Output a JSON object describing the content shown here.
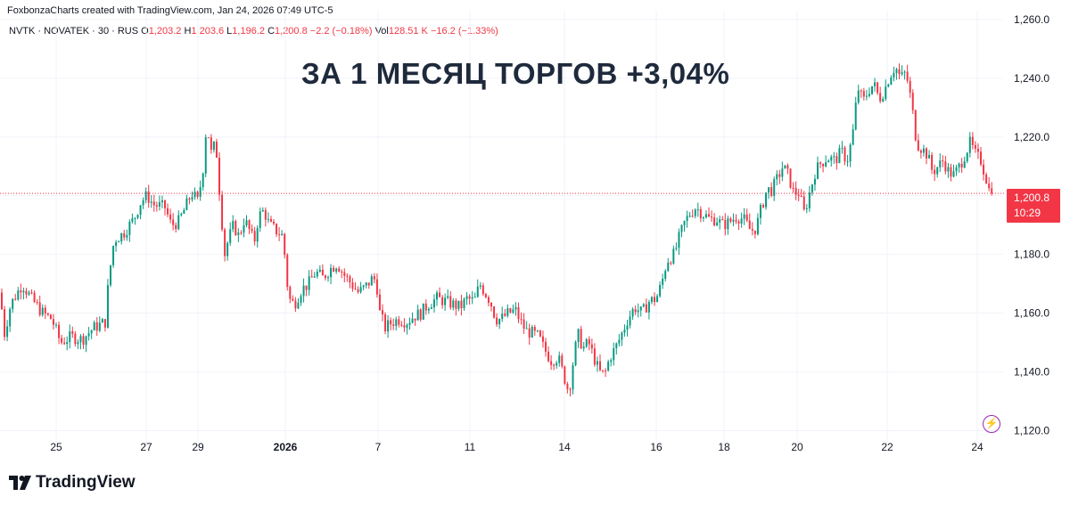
{
  "credit": "FoxbonzaCharts created with TradingView.com, Jan 24, 2026 07:49 UTC-5",
  "legend": {
    "symbol": "NVTK · NOVATEK · 30 · RUS",
    "open_label": "O",
    "open": "1,203.2",
    "high_label": "H",
    "high": "1,203.6",
    "low_label": "L",
    "low": "1,196.2",
    "close_label": "C",
    "close": "1,200.8",
    "change": "−2.2 (−0.18%)",
    "vol_label": "Vol",
    "vol": "128.51 K",
    "vol_change": "−16.2 (−1.33%)"
  },
  "headline": "ЗА 1 МЕСЯЦ ТОРГОВ +3,04%",
  "price_tag": {
    "price": "1,200.8",
    "countdown": "10:29"
  },
  "brand": "TradingView",
  "colors": {
    "up": "#089981",
    "down": "#f23645",
    "grid": "#f0f3fa",
    "text": "#131722"
  },
  "icons": {
    "lightning": "lightning-icon",
    "logo": "tradingview-logo-icon"
  },
  "chart_data": {
    "type": "candlestick",
    "ylim": [
      1115,
      1263
    ],
    "y_ticks": [
      "1,260.0",
      "1,240.0",
      "1,220.0",
      "1,200.0",
      "1,180.0",
      "1,160.0",
      "1,140.0",
      "1,120.0"
    ],
    "y_tick_values": [
      1260,
      1240,
      1220,
      1200,
      1180,
      1160,
      1140,
      1120
    ],
    "x_ticks": [
      "25",
      "27",
      "29",
      "2026",
      "7",
      "11",
      "14",
      "16",
      "18",
      "20",
      "22",
      "24"
    ],
    "last_price": 1200.8,
    "path": [
      [
        0,
        1167
      ],
      [
        5,
        1153
      ],
      [
        12,
        1163
      ],
      [
        25,
        1170
      ],
      [
        35,
        1165
      ],
      [
        48,
        1160
      ],
      [
        58,
        1158
      ],
      [
        68,
        1150
      ],
      [
        80,
        1152
      ],
      [
        92,
        1151
      ],
      [
        105,
        1155
      ],
      [
        118,
        1157
      ],
      [
        122,
        1172
      ],
      [
        128,
        1185
      ],
      [
        138,
        1187
      ],
      [
        150,
        1192
      ],
      [
        158,
        1198
      ],
      [
        165,
        1200
      ],
      [
        172,
        1197
      ],
      [
        185,
        1196
      ],
      [
        192,
        1190
      ],
      [
        200,
        1191
      ],
      [
        208,
        1196
      ],
      [
        215,
        1201
      ],
      [
        222,
        1198
      ],
      [
        228,
        1210
      ],
      [
        232,
        1226
      ],
      [
        236,
        1214
      ],
      [
        242,
        1218
      ],
      [
        247,
        1198
      ],
      [
        252,
        1180
      ],
      [
        256,
        1185
      ],
      [
        262,
        1190
      ],
      [
        268,
        1186
      ],
      [
        274,
        1192
      ],
      [
        280,
        1188
      ],
      [
        285,
        1184
      ],
      [
        290,
        1193
      ],
      [
        296,
        1195
      ],
      [
        302,
        1190
      ],
      [
        310,
        1188
      ],
      [
        318,
        1186
      ],
      [
        320,
        1176
      ],
      [
        324,
        1165
      ],
      [
        330,
        1163
      ],
      [
        338,
        1168
      ],
      [
        346,
        1170
      ],
      [
        354,
        1174
      ],
      [
        362,
        1172
      ],
      [
        370,
        1175
      ],
      [
        378,
        1177
      ],
      [
        386,
        1173
      ],
      [
        394,
        1170
      ],
      [
        402,
        1167
      ],
      [
        410,
        1169
      ],
      [
        418,
        1172
      ],
      [
        422,
        1171
      ],
      [
        426,
        1160
      ],
      [
        432,
        1155
      ],
      [
        440,
        1157
      ],
      [
        448,
        1158
      ],
      [
        456,
        1157
      ],
      [
        464,
        1159
      ],
      [
        472,
        1160
      ],
      [
        480,
        1163
      ],
      [
        490,
        1165
      ],
      [
        500,
        1164
      ],
      [
        508,
        1163
      ],
      [
        516,
        1162
      ],
      [
        524,
        1165
      ],
      [
        532,
        1164
      ],
      [
        538,
        1170
      ],
      [
        544,
        1167
      ],
      [
        550,
        1164
      ],
      [
        556,
        1158
      ],
      [
        562,
        1158
      ],
      [
        570,
        1160
      ],
      [
        578,
        1161
      ],
      [
        584,
        1157
      ],
      [
        590,
        1154
      ],
      [
        598,
        1153
      ],
      [
        604,
        1152
      ],
      [
        610,
        1148
      ],
      [
        618,
        1144
      ],
      [
        626,
        1145
      ],
      [
        632,
        1139
      ],
      [
        638,
        1133
      ],
      [
        642,
        1142
      ],
      [
        648,
        1153
      ],
      [
        654,
        1148
      ],
      [
        660,
        1150
      ],
      [
        666,
        1145
      ],
      [
        672,
        1140
      ],
      [
        678,
        1139
      ],
      [
        684,
        1145
      ],
      [
        690,
        1148
      ],
      [
        696,
        1152
      ],
      [
        704,
        1158
      ],
      [
        712,
        1162
      ],
      [
        720,
        1160
      ],
      [
        728,
        1164
      ],
      [
        736,
        1165
      ],
      [
        742,
        1170
      ],
      [
        748,
        1178
      ],
      [
        756,
        1180
      ],
      [
        762,
        1186
      ],
      [
        768,
        1191
      ],
      [
        774,
        1194
      ],
      [
        780,
        1196
      ],
      [
        788,
        1194
      ],
      [
        796,
        1192
      ],
      [
        804,
        1192
      ],
      [
        810,
        1190
      ],
      [
        818,
        1191
      ],
      [
        826,
        1193
      ],
      [
        834,
        1192
      ],
      [
        842,
        1188
      ],
      [
        848,
        1189
      ],
      [
        854,
        1196
      ],
      [
        860,
        1202
      ],
      [
        866,
        1202
      ],
      [
        872,
        1206
      ],
      [
        878,
        1210
      ],
      [
        884,
        1207
      ],
      [
        890,
        1201
      ],
      [
        896,
        1201
      ],
      [
        902,
        1194
      ],
      [
        908,
        1201
      ],
      [
        914,
        1208
      ],
      [
        920,
        1211
      ],
      [
        928,
        1213
      ],
      [
        936,
        1212
      ],
      [
        944,
        1215
      ],
      [
        950,
        1212
      ],
      [
        956,
        1220
      ],
      [
        962,
        1237
      ],
      [
        968,
        1232
      ],
      [
        974,
        1236
      ],
      [
        980,
        1238
      ],
      [
        986,
        1233
      ],
      [
        992,
        1236
      ],
      [
        998,
        1241
      ],
      [
        1004,
        1244
      ],
      [
        1010,
        1240
      ],
      [
        1016,
        1242
      ],
      [
        1022,
        1232
      ],
      [
        1028,
        1218
      ],
      [
        1034,
        1216
      ],
      [
        1040,
        1214
      ],
      [
        1046,
        1208
      ],
      [
        1052,
        1210
      ],
      [
        1058,
        1212
      ],
      [
        1064,
        1208
      ],
      [
        1070,
        1207
      ],
      [
        1076,
        1210
      ],
      [
        1082,
        1214
      ],
      [
        1088,
        1218
      ],
      [
        1094,
        1214
      ],
      [
        1100,
        1212
      ],
      [
        1106,
        1206
      ],
      [
        1110,
        1201
      ],
      [
        1114,
        1198
      ]
    ]
  }
}
